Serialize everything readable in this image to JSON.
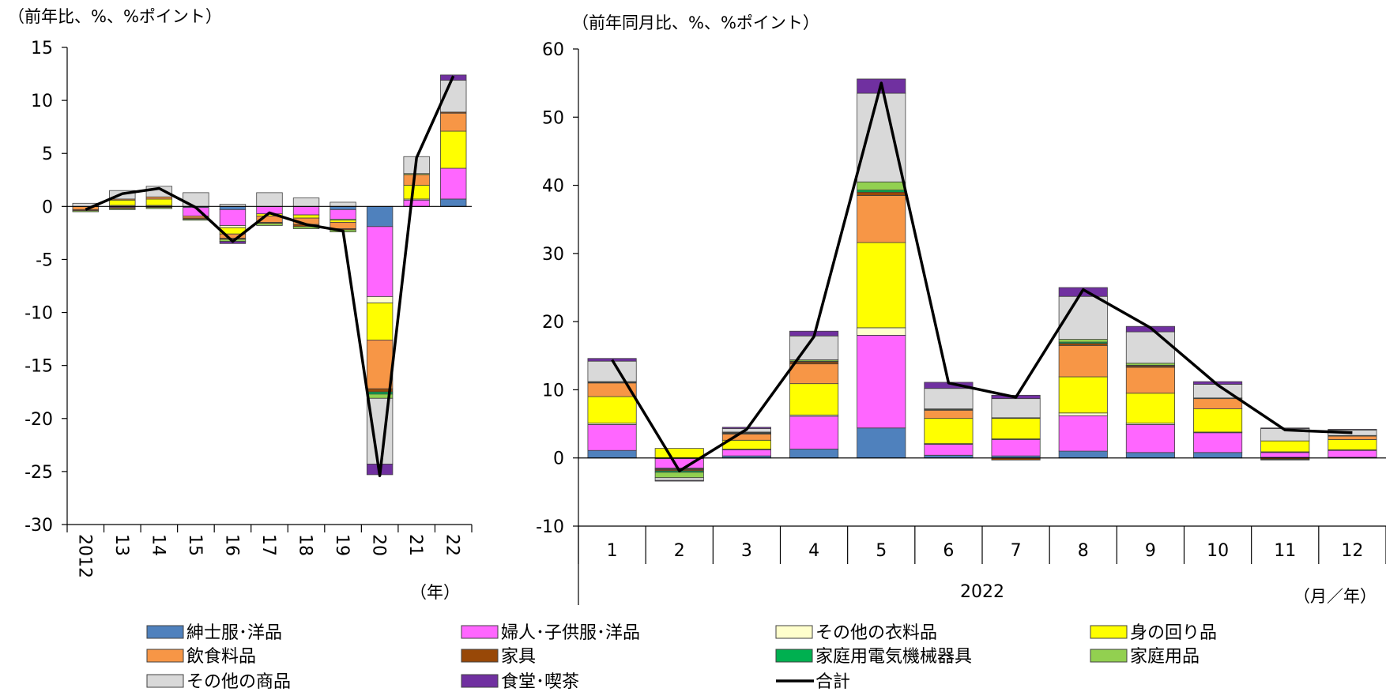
{
  "series_colors": {
    "mens": "#4F81BD",
    "womens": "#FF66FF",
    "other_clothing": "#FFFFCC",
    "accessories": "#FFFF00",
    "food": "#F79646",
    "furniture": "#984807",
    "appliances": "#00B050",
    "household": "#92D050",
    "other_goods": "#D9D9D9",
    "dining": "#7030A0",
    "total": "#000000"
  },
  "legend": [
    {
      "key": "mens",
      "label": "紳士服･洋品"
    },
    {
      "key": "womens",
      "label": "婦人･子供服･洋品"
    },
    {
      "key": "other_clothing",
      "label": "その他の衣料品"
    },
    {
      "key": "accessories",
      "label": "身の回り品"
    },
    {
      "key": "food",
      "label": "飲食料品"
    },
    {
      "key": "furniture",
      "label": "家具"
    },
    {
      "key": "appliances",
      "label": "家庭用電気機械器具"
    },
    {
      "key": "household",
      "label": "家庭用品"
    },
    {
      "key": "other_goods",
      "label": "その他の商品"
    },
    {
      "key": "dining",
      "label": "食堂･喫茶"
    },
    {
      "key": "total",
      "label": "合計"
    }
  ],
  "chart_data": [
    {
      "type": "bar",
      "stacked": true,
      "unit_label": "（前年比、%、%ポイント）",
      "x_unit": "（年）",
      "ylim": [
        -30,
        15
      ],
      "yticks": [
        15,
        10,
        5,
        0,
        -5,
        -10,
        -15,
        -20,
        -25,
        -30
      ],
      "categories": [
        "2012",
        "13",
        "14",
        "15",
        "16",
        "17",
        "18",
        "19",
        "20",
        "21",
        "22"
      ],
      "series": [
        {
          "key": "mens",
          "values": [
            0,
            0,
            0,
            -0.1,
            -0.3,
            0,
            0,
            -0.3,
            -1.9,
            0,
            0.7
          ]
        },
        {
          "key": "womens",
          "values": [
            0,
            -0.1,
            0,
            -0.8,
            -1.5,
            -0.7,
            -0.8,
            -0.9,
            -6.6,
            0.6,
            2.9
          ]
        },
        {
          "key": "other_clothing",
          "values": [
            0,
            0.1,
            0.1,
            0,
            -0.2,
            0,
            0,
            -0.1,
            -0.6,
            0.1,
            0
          ]
        },
        {
          "key": "accessories",
          "values": [
            0,
            0.5,
            0.6,
            0,
            -0.6,
            -0.2,
            -0.3,
            -0.2,
            -3.5,
            1.3,
            3.5
          ]
        },
        {
          "key": "food",
          "values": [
            -0.3,
            0.1,
            0.2,
            -0.2,
            -0.4,
            -0.6,
            -0.6,
            -0.6,
            -4.6,
            1.0,
            1.7
          ]
        },
        {
          "key": "furniture",
          "values": [
            -0.1,
            -0.1,
            -0.1,
            -0.1,
            -0.1,
            -0.1,
            -0.2,
            -0.1,
            -0.3,
            0,
            0.1
          ]
        },
        {
          "key": "appliances",
          "values": [
            0,
            0,
            0,
            0,
            0,
            0,
            0,
            0,
            -0.2,
            0,
            0
          ]
        },
        {
          "key": "household",
          "values": [
            -0.1,
            -0.1,
            -0.1,
            -0.1,
            -0.2,
            -0.2,
            -0.2,
            -0.2,
            -0.4,
            0.1,
            0
          ]
        },
        {
          "key": "other_goods",
          "values": [
            0.3,
            0.8,
            1.0,
            1.3,
            0.2,
            1.3,
            0.8,
            0.4,
            -6.2,
            1.6,
            3.0
          ]
        },
        {
          "key": "dining",
          "values": [
            0,
            0,
            0,
            0,
            -0.2,
            0,
            0,
            0,
            -1.0,
            0,
            0.5
          ]
        }
      ],
      "total": [
        -0.3,
        1.2,
        1.7,
        -0.1,
        -3.3,
        -0.6,
        -1.7,
        -2.3,
        -25.4,
        4.6,
        12.3
      ]
    },
    {
      "type": "bar",
      "stacked": true,
      "unit_label": "（前年同月比、%、%ポイント）",
      "x_unit": "（月／年）",
      "year_label": "2022",
      "ylim": [
        -10,
        60
      ],
      "yticks": [
        60,
        50,
        40,
        30,
        20,
        10,
        0,
        -10
      ],
      "categories": [
        "1",
        "2",
        "3",
        "4",
        "5",
        "6",
        "7",
        "8",
        "9",
        "10",
        "11",
        "12"
      ],
      "series": [
        {
          "key": "mens",
          "values": [
            1.1,
            -0.1,
            0.3,
            1.3,
            4.4,
            0.4,
            0.3,
            1.0,
            0.8,
            0.8,
            0.1,
            0.1
          ]
        },
        {
          "key": "womens",
          "values": [
            3.8,
            -1.4,
            0.9,
            4.8,
            13.6,
            1.6,
            2.4,
            5.2,
            4.1,
            2.9,
            0.7,
            1.0
          ]
        },
        {
          "key": "other_clothing",
          "values": [
            0.2,
            -0.1,
            0.1,
            0.2,
            1.1,
            0.1,
            0.1,
            0.4,
            0.2,
            0.1,
            0.1,
            0.1
          ]
        },
        {
          "key": "accessories",
          "values": [
            3.9,
            1.4,
            1.3,
            4.6,
            12.5,
            3.7,
            3.0,
            5.3,
            4.4,
            3.4,
            1.6,
            1.5
          ]
        },
        {
          "key": "food",
          "values": [
            2.0,
            -0.1,
            0.9,
            2.9,
            6.9,
            1.2,
            0,
            4.6,
            3.8,
            1.5,
            0,
            0.5
          ]
        },
        {
          "key": "furniture",
          "values": [
            0.1,
            -0.2,
            0.1,
            0.3,
            0.5,
            0,
            -0.3,
            0.3,
            0.2,
            0,
            -0.2,
            0
          ]
        },
        {
          "key": "appliances",
          "values": [
            0.1,
            -0.2,
            0.1,
            0.1,
            0.3,
            0.1,
            0,
            0.2,
            0.1,
            0,
            -0.1,
            0
          ]
        },
        {
          "key": "household",
          "values": [
            0,
            -0.8,
            0.1,
            0.2,
            1.2,
            0.1,
            0.1,
            0.4,
            0.3,
            0.1,
            0,
            0.1
          ]
        },
        {
          "key": "other_goods",
          "values": [
            3.0,
            -0.4,
            0.5,
            3.5,
            13.0,
            3.0,
            2.8,
            6.3,
            4.6,
            2.0,
            1.8,
            0.8
          ]
        },
        {
          "key": "dining",
          "values": [
            0.4,
            -0.1,
            0.2,
            0.7,
            2.1,
            0.9,
            0.5,
            1.3,
            0.8,
            0.4,
            0.1,
            0.1
          ]
        }
      ],
      "total": [
        14.4,
        -1.9,
        4.2,
        17.8,
        55.0,
        11.0,
        8.9,
        24.7,
        19.1,
        10.7,
        4.1,
        3.7
      ]
    }
  ]
}
